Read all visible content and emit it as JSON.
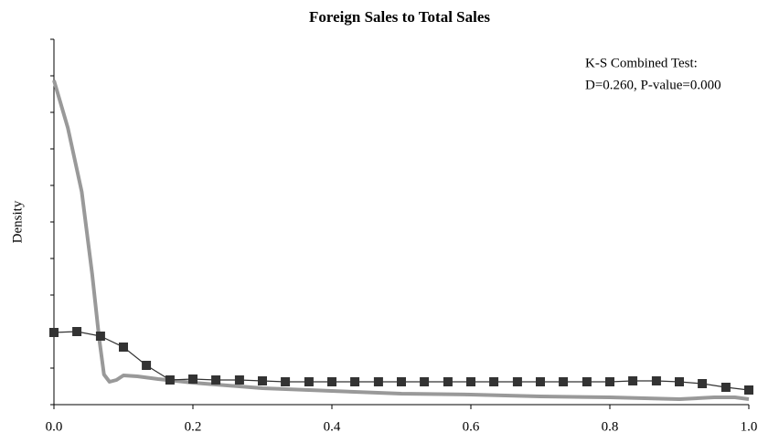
{
  "chart_data": {
    "type": "line",
    "title": "Foreign Sales to Total Sales",
    "ylabel": "Density",
    "annotation": [
      "K-S Combined Test:",
      "D=0.260, P-value=0.000"
    ],
    "xlim": [
      0,
      1
    ],
    "xticks": [
      {
        "value": 0,
        "label": "0.0"
      },
      0.2,
      0.4,
      0.6,
      0.8,
      {
        "value": 1,
        "label": "1.0"
      }
    ],
    "ylim": [
      0,
      10
    ],
    "yticks": [
      0,
      1,
      2,
      3,
      4,
      5,
      6,
      7,
      8,
      9,
      10
    ],
    "series": [
      {
        "color": "#999999",
        "marker": "none",
        "x": [
          0,
          0.02,
          0.04,
          0.055,
          0.065,
          0.072,
          0.08,
          0.09,
          0.1,
          0.12,
          0.15,
          0.2,
          0.3,
          0.4,
          0.5,
          0.6,
          0.7,
          0.8,
          0.9,
          0.95,
          0.98,
          1.0
        ],
        "values": [
          8.875,
          7.575,
          5.825,
          3.575,
          1.825,
          0.825,
          0.625,
          0.675,
          0.8,
          0.775,
          0.7,
          0.6,
          0.45,
          0.375,
          0.3,
          0.275,
          0.225,
          0.2,
          0.15,
          0.2,
          0.2,
          0.15
        ]
      },
      {
        "color": "#333333",
        "marker": "square",
        "x": [
          0,
          0.033,
          0.067,
          0.1,
          0.133,
          0.167,
          0.2,
          0.233,
          0.267,
          0.3,
          0.333,
          0.367,
          0.4,
          0.433,
          0.467,
          0.5,
          0.533,
          0.567,
          0.6,
          0.633,
          0.667,
          0.7,
          0.733,
          0.767,
          0.8,
          0.833,
          0.867,
          0.9,
          0.933,
          0.967,
          1.0
        ],
        "values": [
          1.975,
          2.0,
          1.875,
          1.575,
          1.075,
          0.675,
          0.7,
          0.675,
          0.675,
          0.65,
          0.625,
          0.625,
          0.625,
          0.625,
          0.625,
          0.625,
          0.625,
          0.625,
          0.625,
          0.625,
          0.625,
          0.625,
          0.625,
          0.625,
          0.625,
          0.65,
          0.65,
          0.625,
          0.575,
          0.475,
          0.4
        ]
      }
    ]
  }
}
